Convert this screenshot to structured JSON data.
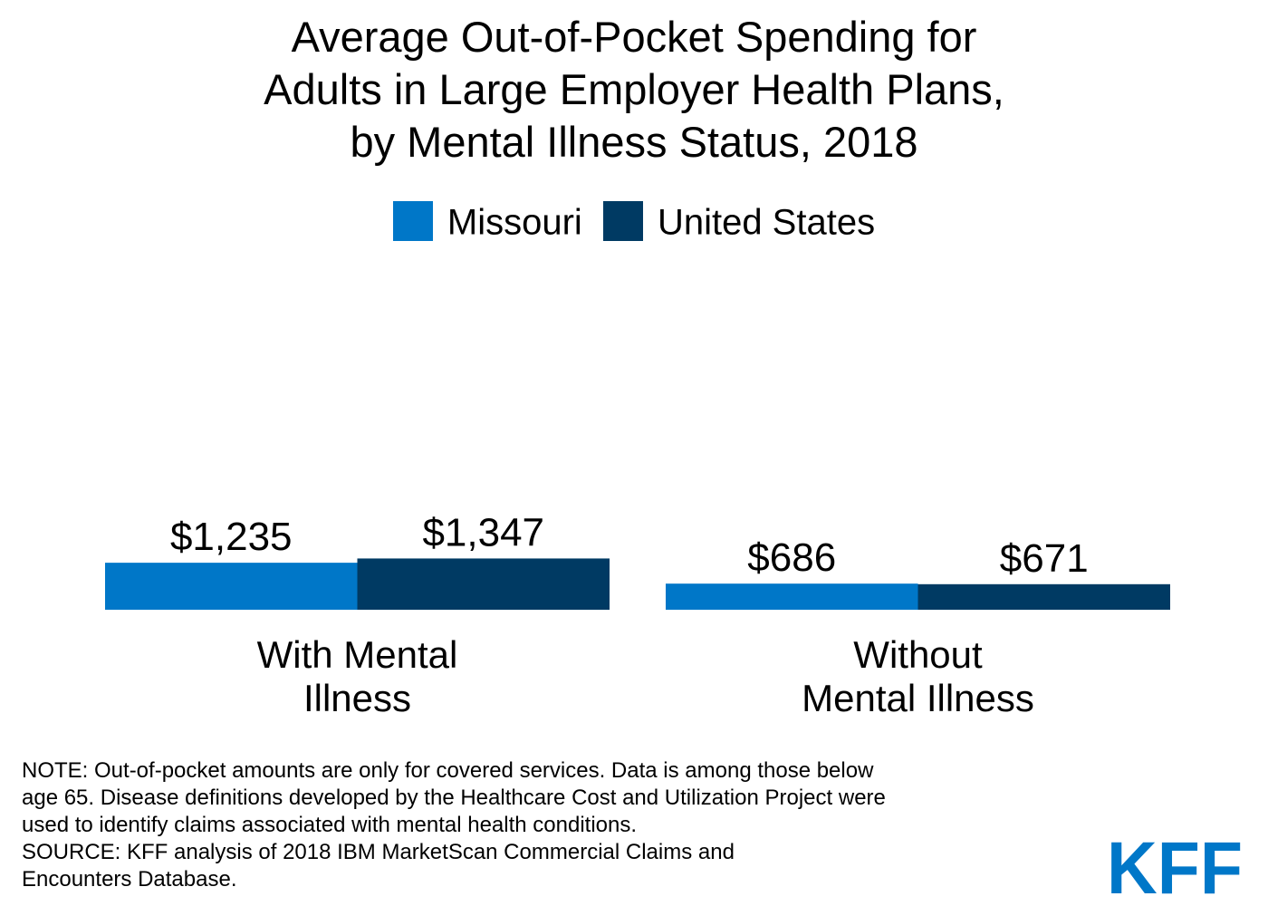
{
  "title_lines": [
    "Average Out-of-Pocket Spending for",
    "Adults in Large Employer Health Plans,",
    "by Mental Illness Status, 2018"
  ],
  "colors": {
    "missouri": "#0077c8",
    "united_states": "#003a63"
  },
  "chart_data": {
    "type": "bar",
    "title": "Average Out-of-Pocket Spending for Adults in Large Employer Health Plans, by Mental Illness Status, 2018",
    "categories": [
      [
        "With Mental",
        "Illness"
      ],
      [
        "Without",
        "Mental Illness"
      ]
    ],
    "series": [
      {
        "name": "Missouri",
        "values": [
          1235,
          686
        ],
        "labels": [
          "$1,235",
          "$686"
        ]
      },
      {
        "name": "United States",
        "values": [
          1347,
          671
        ],
        "labels": [
          "$1,347",
          "$671"
        ]
      }
    ],
    "legend_position": "top",
    "grid": false,
    "y_axis_visible": false
  },
  "note_lines": [
    "NOTE: Out-of-pocket amounts are only for covered services. Data is among those below",
    "age 65. Disease definitions developed by the Healthcare Cost and Utilization Project were",
    "used to identify claims associated with mental health conditions.",
    "SOURCE: KFF analysis of 2018 IBM MarketScan Commercial Claims and",
    "Encounters Database."
  ],
  "logo_text": "KFF",
  "logo_color": "#0077c8"
}
